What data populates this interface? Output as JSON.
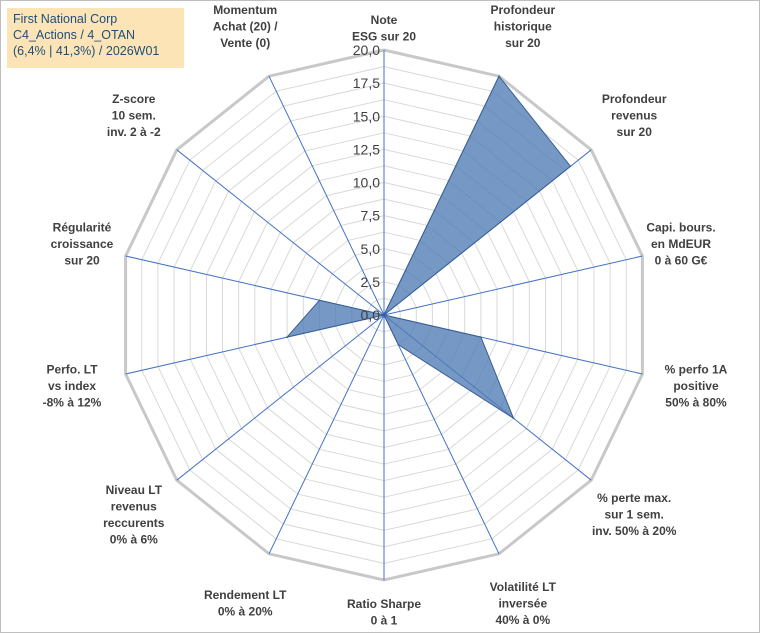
{
  "title": {
    "line1": "First National Corp",
    "line2": "C4_Actions / 4_OTAN",
    "line3": "(6,4% | 41,3%) / 2026W01"
  },
  "chart_data": {
    "type": "radar",
    "r_range": [
      0,
      20
    ],
    "ticks": [
      "0,0",
      "2,5",
      "5,0",
      "7,5",
      "10,0",
      "12,5",
      "15,0",
      "17,5",
      "20,0"
    ],
    "grid": true,
    "colors": {
      "fill": "#4f7bb5",
      "fill_opacity": "0.78",
      "stroke": "#3a5f94",
      "axis": "#4472c4",
      "grid": "#d9d9d9",
      "ring": "#c8c8c8"
    },
    "axes": [
      {
        "label": [
          "Note",
          "ESG sur 20"
        ],
        "value": 0
      },
      {
        "label": [
          "Profondeur",
          "historique",
          "sur 20"
        ],
        "value": 20
      },
      {
        "label": [
          "Profondeur",
          "revenus",
          "sur 20"
        ],
        "value": 18
      },
      {
        "label": [
          "Capi. bours.",
          "en MdEUR",
          "0 à 60 G€"
        ],
        "value": 0
      },
      {
        "label": [
          "% perfo 1A",
          "positive",
          "50% à 80%"
        ],
        "value": 7.5
      },
      {
        "label": [
          "% perte max.",
          "sur 1 sem.",
          "inv. 50% à 20%"
        ],
        "value": 12.5
      },
      {
        "label": [
          "Volatilité LT",
          "inversée",
          "40% à 0%"
        ],
        "value": 2.5
      },
      {
        "label": [
          "Ratio Sharpe",
          "0 à 1"
        ],
        "value": 0
      },
      {
        "label": [
          "Rendement LT",
          "0% à 20%"
        ],
        "value": 0
      },
      {
        "label": [
          "Niveau LT",
          "revenus",
          "reccurents",
          "0% à 6%"
        ],
        "value": 0
      },
      {
        "label": [
          "Perfo. LT",
          "vs index",
          "-8% à 12%"
        ],
        "value": 7.5
      },
      {
        "label": [
          "Régularité",
          "croissance",
          "sur 20"
        ],
        "value": 5
      },
      {
        "label": [
          "Z-score",
          "10 sem.",
          "inv. 2 à -2"
        ],
        "value": 0
      },
      {
        "label": [
          "Momentum",
          "Achat (20) /",
          "Vente (0)"
        ],
        "value": 0
      }
    ]
  }
}
